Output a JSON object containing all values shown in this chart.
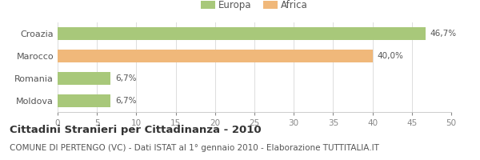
{
  "categories": [
    "Croazia",
    "Marocco",
    "Romania",
    "Moldova"
  ],
  "values": [
    46.7,
    40.0,
    6.7,
    6.7
  ],
  "bar_colors": [
    "#a8c87a",
    "#f0b87a",
    "#a8c87a",
    "#a8c87a"
  ],
  "value_labels": [
    "46,7%",
    "40,0%",
    "6,7%",
    "6,7%"
  ],
  "xlim": [
    0,
    50
  ],
  "xticks": [
    0,
    5,
    10,
    15,
    20,
    25,
    30,
    35,
    40,
    45,
    50
  ],
  "legend_items": [
    {
      "label": "Europa",
      "color": "#a8c87a"
    },
    {
      "label": "Africa",
      "color": "#f0b87a"
    }
  ],
  "title": "Cittadini Stranieri per Cittadinanza - 2010",
  "subtitle": "COMUNE DI PERTENGO (VC) - Dati ISTAT al 1° gennaio 2010 - Elaborazione TUTTITALIA.IT",
  "background_color": "#ffffff",
  "bar_height": 0.55,
  "title_fontsize": 9.5,
  "subtitle_fontsize": 7.5,
  "label_fontsize": 7.5,
  "tick_fontsize": 7.5,
  "category_fontsize": 8,
  "legend_fontsize": 8.5
}
